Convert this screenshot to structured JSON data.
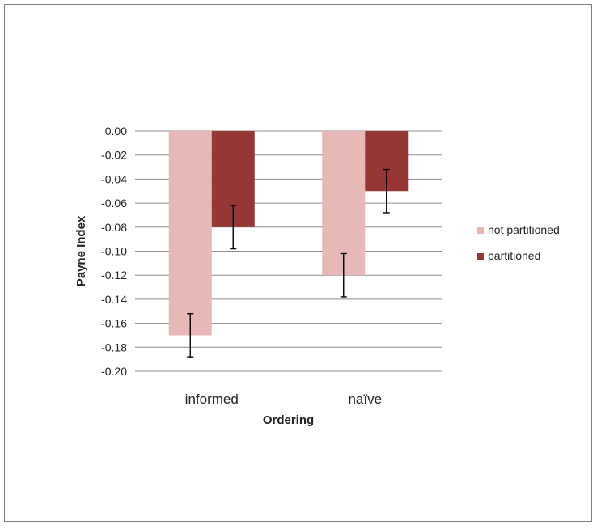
{
  "chart_data": {
    "type": "bar",
    "xlabel": "Ordering",
    "ylabel": "Payne Index",
    "categories": [
      "informed",
      "naïve"
    ],
    "ylim": [
      -0.2,
      0.0
    ],
    "yticks": [
      "0.00",
      "-0.02",
      "-0.04",
      "-0.06",
      "-0.08",
      "-0.10",
      "-0.12",
      "-0.14",
      "-0.16",
      "-0.18",
      "-0.20"
    ],
    "grid": true,
    "legend_position": "right",
    "series": [
      {
        "name": "not partitioned",
        "color": "#e6b9b8",
        "values": [
          -0.17,
          -0.12
        ],
        "errors": [
          0.018,
          0.018
        ]
      },
      {
        "name": "partitioned",
        "color": "#953735",
        "values": [
          -0.08,
          -0.05
        ],
        "errors": [
          0.018,
          0.018
        ]
      }
    ]
  }
}
